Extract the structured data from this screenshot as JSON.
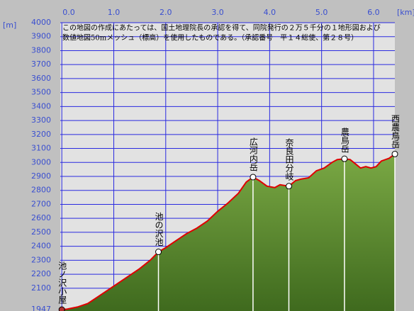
{
  "chart_data": {
    "type": "area",
    "x_label": "[km]",
    "y_label": "[m]",
    "note": [
      "この地図の作成にあたっては、国土地理院長の承認を得て、同院発行の２万５千分の１地形図および",
      "数値地図50mメッシュ（標高）を使用したものである。（承認番号　平１４総使、第２８号）"
    ],
    "x": [
      0,
      0.1,
      0.3,
      0.5,
      0.7,
      0.9,
      1.1,
      1.3,
      1.5,
      1.7,
      1.86,
      2.0,
      2.2,
      2.4,
      2.6,
      2.8,
      3.0,
      3.2,
      3.4,
      3.55,
      3.68,
      3.8,
      3.95,
      4.1,
      4.2,
      4.37,
      4.5,
      4.6,
      4.75,
      4.9,
      5.05,
      5.2,
      5.3,
      5.44,
      5.55,
      5.65,
      5.75,
      5.85,
      5.95,
      6.05,
      6.15,
      6.3,
      6.41
    ],
    "values": [
      1947,
      1950,
      1965,
      1990,
      2040,
      2090,
      2140,
      2190,
      2240,
      2300,
      2360,
      2390,
      2440,
      2490,
      2530,
      2580,
      2650,
      2710,
      2780,
      2860,
      2895,
      2870,
      2830,
      2820,
      2840,
      2830,
      2870,
      2880,
      2890,
      2940,
      2960,
      3000,
      3020,
      3026,
      3020,
      2990,
      2960,
      2970,
      2960,
      2970,
      3010,
      3030,
      3060
    ],
    "line_color": "#e00000",
    "fill_color": "#6e9a3c",
    "peaks": [
      {
        "label": "池ノ沢小屋",
        "x": 0,
        "y": 1947
      },
      {
        "label": "池の沢池",
        "x": 1.86,
        "y": 2360
      },
      {
        "label": "広河内岳",
        "x": 3.68,
        "y": 2895
      },
      {
        "label": "奈良田分岐",
        "x": 4.37,
        "y": 2830
      },
      {
        "label": "農鳥岳",
        "x": 5.44,
        "y": 3026
      },
      {
        "label": "西農鳥岳",
        "x": 6.41,
        "y": 3060
      }
    ],
    "xlim": [
      -0.03,
      6.41
    ],
    "xticks": [
      {
        "value": 0,
        "label": "0.0"
      },
      {
        "value": 1,
        "label": "1.0"
      },
      {
        "value": 2,
        "label": "2.0"
      },
      {
        "value": 3,
        "label": "3.0"
      },
      {
        "value": 4,
        "label": "4.0"
      },
      {
        "value": 5,
        "label": "5.0"
      },
      {
        "value": 6,
        "label": "6.0"
      }
    ],
    "ylim": [
      1947,
      4000
    ],
    "yticks": [
      1947,
      2100,
      2200,
      2300,
      2400,
      2500,
      2600,
      2700,
      2800,
      2900,
      3000,
      3100,
      3200,
      3300,
      3400,
      3500,
      3600,
      3700,
      3800,
      3900,
      4000
    ],
    "grid": true
  }
}
